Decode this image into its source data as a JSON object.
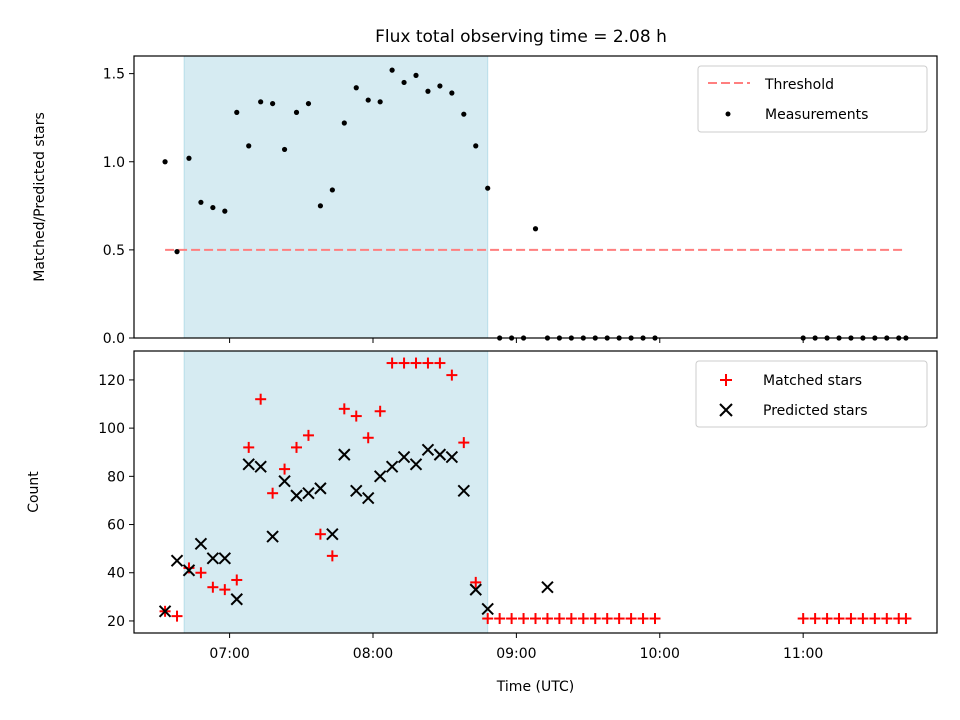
{
  "chart_data": [
    {
      "type": "scatter",
      "title": "Flux total observing time = 2.08 h",
      "xlabel": "",
      "ylabel": "Matched/Predicted stars",
      "ylim": [
        0,
        1.6
      ],
      "yticks": [
        "0.0",
        "0.5",
        "1.0",
        "1.5"
      ],
      "legend_position": "upper right",
      "highlight_span": {
        "start": "06:41",
        "end": "08:48",
        "color": "#add8e6"
      },
      "threshold": {
        "name": "Threshold",
        "value": 0.5,
        "x_start": "06:33",
        "x_end": "11:43",
        "color": "#ff7f7f",
        "style": "dashed"
      },
      "series": [
        {
          "name": "Measurements",
          "marker": "dot",
          "color": "#000000",
          "x": [
            "06:33",
            "06:38",
            "06:43",
            "06:48",
            "06:53",
            "06:58",
            "07:03",
            "07:08",
            "07:13",
            "07:18",
            "07:23",
            "07:28",
            "07:33",
            "07:38",
            "07:43",
            "07:48",
            "07:53",
            "07:58",
            "08:03",
            "08:08",
            "08:13",
            "08:18",
            "08:23",
            "08:28",
            "08:33",
            "08:38",
            "08:43",
            "08:48",
            "08:53",
            "08:58",
            "09:03",
            "09:08",
            "09:13",
            "09:18",
            "09:23",
            "09:28",
            "09:33",
            "09:38",
            "09:43",
            "09:48",
            "09:53",
            "09:58",
            "11:00",
            "11:05",
            "11:10",
            "11:15",
            "11:20",
            "11:25",
            "11:30",
            "11:35",
            "11:40",
            "11:43"
          ],
          "y": [
            1.0,
            0.49,
            1.02,
            0.77,
            0.74,
            0.72,
            1.28,
            1.09,
            1.34,
            1.33,
            1.07,
            1.28,
            1.33,
            0.75,
            0.84,
            1.22,
            1.42,
            1.35,
            1.34,
            1.52,
            1.45,
            1.49,
            1.4,
            1.43,
            1.39,
            1.27,
            1.09,
            0.85,
            0.0,
            0.0,
            0.0,
            0.62,
            0.0,
            0.0,
            0.0,
            0.0,
            0.0,
            0.0,
            0.0,
            0.0,
            0.0,
            0.0,
            0.0,
            0.0,
            0.0,
            0.0,
            0.0,
            0.0,
            0.0,
            0.0,
            0.0,
            0.0
          ]
        }
      ]
    },
    {
      "type": "scatter",
      "title": "",
      "xlabel": "Time (UTC)",
      "ylabel": "Count",
      "ylim": [
        15,
        132
      ],
      "yticks": [
        "20",
        "40",
        "60",
        "80",
        "100",
        "120"
      ],
      "xticks": [
        "07:00",
        "08:00",
        "09:00",
        "10:00",
        "11:00"
      ],
      "legend_position": "upper right",
      "highlight_span": {
        "start": "06:41",
        "end": "08:48",
        "color": "#add8e6"
      },
      "series": [
        {
          "name": "Matched stars",
          "marker": "plus",
          "color": "#ff0000",
          "x": [
            "06:33",
            "06:38",
            "06:43",
            "06:48",
            "06:53",
            "06:58",
            "07:03",
            "07:08",
            "07:13",
            "07:18",
            "07:23",
            "07:28",
            "07:33",
            "07:38",
            "07:43",
            "07:48",
            "07:53",
            "07:58",
            "08:03",
            "08:08",
            "08:13",
            "08:18",
            "08:23",
            "08:28",
            "08:33",
            "08:38",
            "08:43",
            "08:48",
            "08:53",
            "08:58",
            "09:03",
            "09:08",
            "09:13",
            "09:18",
            "09:23",
            "09:28",
            "09:33",
            "09:38",
            "09:43",
            "09:48",
            "09:53",
            "09:58",
            "11:00",
            "11:05",
            "11:10",
            "11:15",
            "11:20",
            "11:25",
            "11:30",
            "11:35",
            "11:40",
            "11:43"
          ],
          "y": [
            24,
            22,
            42,
            40,
            34,
            33,
            37,
            92,
            112,
            73,
            83,
            92,
            97,
            56,
            47,
            108,
            105,
            96,
            107,
            127,
            127,
            127,
            127,
            127,
            122,
            94,
            36,
            21,
            21,
            21,
            21,
            21,
            21,
            21,
            21,
            21,
            21,
            21,
            21,
            21,
            21,
            21,
            21,
            21,
            21,
            21,
            21,
            21,
            21,
            21,
            21,
            21
          ]
        },
        {
          "name": "Predicted stars",
          "marker": "x",
          "color": "#000000",
          "x": [
            "06:33",
            "06:38",
            "06:43",
            "06:48",
            "06:53",
            "06:58",
            "07:03",
            "07:08",
            "07:13",
            "07:18",
            "07:23",
            "07:28",
            "07:33",
            "07:38",
            "07:43",
            "07:48",
            "07:53",
            "07:58",
            "08:03",
            "08:08",
            "08:13",
            "08:18",
            "08:23",
            "08:28",
            "08:33",
            "08:38",
            "08:43",
            "08:48",
            "09:13"
          ],
          "y": [
            24,
            45,
            41,
            52,
            46,
            46,
            29,
            85,
            84,
            55,
            78,
            72,
            73,
            75,
            56,
            89,
            74,
            71,
            80,
            84,
            88,
            85,
            91,
            89,
            88,
            74,
            33,
            25,
            34
          ]
        }
      ]
    }
  ]
}
